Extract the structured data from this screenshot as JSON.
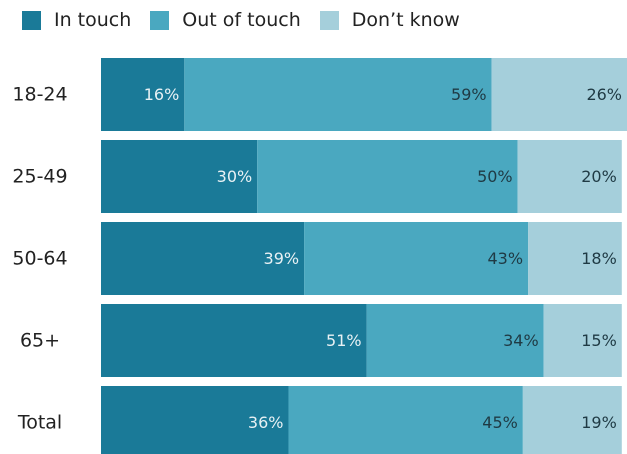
{
  "chart_data": {
    "type": "bar",
    "orientation": "horizontal",
    "stacked": true,
    "title": "",
    "categories": [
      "18-24",
      "25-49",
      "50-64",
      "65+",
      "Total"
    ],
    "series": [
      {
        "name": "In touch",
        "color": "#1a7a98",
        "values": [
          16,
          30,
          39,
          51,
          36
        ],
        "labels": [
          "16%",
          "30%",
          "39%",
          "51%",
          "36%"
        ],
        "label_color": "#e8f1f4"
      },
      {
        "name": "Out of touch",
        "color": "#4aa8c0",
        "values": [
          59,
          50,
          43,
          34,
          45
        ],
        "labels": [
          "59%",
          "50%",
          "43%",
          "34%",
          "45%"
        ],
        "label_color": "#1f3a44"
      },
      {
        "name": "Don’t know",
        "color": "#a5cfdb",
        "values": [
          26,
          20,
          18,
          15,
          19
        ],
        "labels": [
          "26%",
          "20%",
          "18%",
          "15%",
          "19%"
        ],
        "label_color": "#1f3a44"
      }
    ],
    "xlim": [
      0,
      101
    ],
    "legend": "top-left",
    "grid": false
  }
}
